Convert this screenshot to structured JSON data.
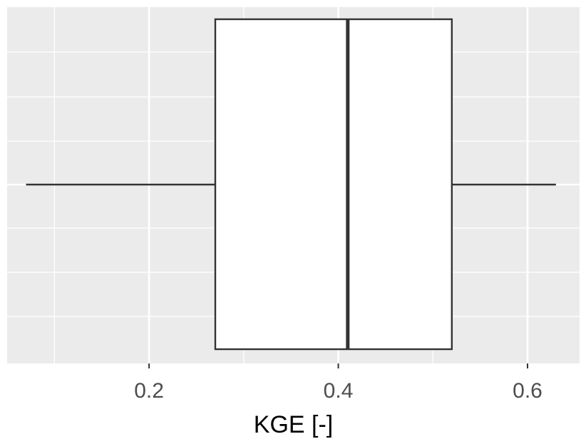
{
  "chart_data": {
    "type": "boxplot",
    "title": "",
    "xlabel": "KGE [-]",
    "ylabel": "",
    "xlim": [
      0.05,
      0.655
    ],
    "xticks": [
      0.2,
      0.4,
      0.6
    ],
    "xtick_labels": [
      "0.2",
      "0.4",
      "0.6"
    ],
    "grid": true,
    "box": {
      "whisker_low": 0.07,
      "q1": 0.27,
      "median": 0.41,
      "q3": 0.52,
      "whisker_high": 0.63
    },
    "colors": {
      "panel": "#ebebeb",
      "grid": "#ffffff",
      "box_fill": "#ffffff",
      "box_line": "#333333"
    }
  }
}
